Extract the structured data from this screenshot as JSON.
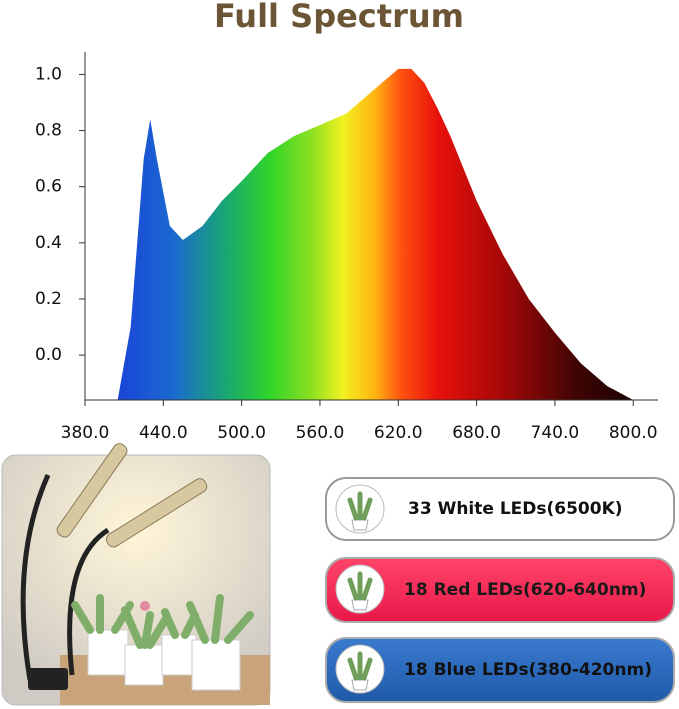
{
  "chart_data": {
    "type": "area",
    "title": "Full Spectrum",
    "x": [
      405,
      415,
      425,
      430,
      435,
      445,
      455,
      470,
      485,
      500,
      520,
      540,
      560,
      580,
      600,
      620,
      630,
      640,
      650,
      660,
      680,
      700,
      720,
      740,
      760,
      780,
      800
    ],
    "values": [
      -0.16,
      0.1,
      0.7,
      0.84,
      0.7,
      0.46,
      0.41,
      0.46,
      0.55,
      0.62,
      0.72,
      0.78,
      0.82,
      0.86,
      0.94,
      1.02,
      1.02,
      0.97,
      0.88,
      0.78,
      0.55,
      0.36,
      0.2,
      0.08,
      -0.03,
      -0.11,
      -0.16
    ],
    "xlim": [
      380,
      819
    ],
    "ylim": [
      -0.16,
      1.08
    ],
    "xticks": [
      {
        "value": 380,
        "label": "380.0"
      },
      {
        "value": 440,
        "label": "440.0"
      },
      {
        "value": 500,
        "label": "500.0"
      },
      {
        "value": 560,
        "label": "560.0"
      },
      {
        "value": 620,
        "label": "620.0"
      },
      {
        "value": 680,
        "label": "680.0"
      },
      {
        "value": 740,
        "label": "740.0"
      },
      {
        "value": 800,
        "label": "800.0"
      }
    ],
    "yticks": [
      {
        "value": 0,
        "label": "0.0"
      },
      {
        "value": 0.2,
        "label": "0.2"
      },
      {
        "value": 0.4,
        "label": "0.4"
      },
      {
        "value": 0.6,
        "label": "0.6"
      },
      {
        "value": 0.8,
        "label": "0.8"
      },
      {
        "value": 1,
        "label": "1.0"
      }
    ]
  },
  "leds": [
    {
      "label": "33 White LEDs(6500K)"
    },
    {
      "label": "18 Red LEDs(620-640nm)"
    },
    {
      "label": "18 Blue LEDs(380-420nm)"
    }
  ]
}
